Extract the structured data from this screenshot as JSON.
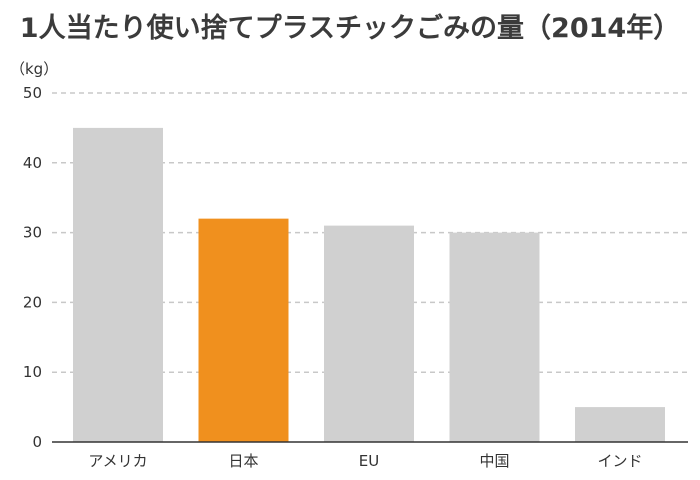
{
  "chart_data": {
    "type": "bar",
    "title": "1人当たり使い捨てプラスチックごみの量（2014年）",
    "unit": "（kg）",
    "categories": [
      "アメリカ",
      "日本",
      "EU",
      "中国",
      "インド"
    ],
    "values": [
      45,
      32,
      31,
      30,
      5
    ],
    "highlight_index": 1,
    "ylim": [
      0,
      50
    ],
    "yticks": [
      0,
      10,
      20,
      30,
      40,
      50
    ],
    "grid": true,
    "colors": {
      "bar": "#d0d0d0",
      "highlight": "#f0901e",
      "grid": "#c8c8c8",
      "axis": "#333333",
      "text": "#333333"
    }
  }
}
